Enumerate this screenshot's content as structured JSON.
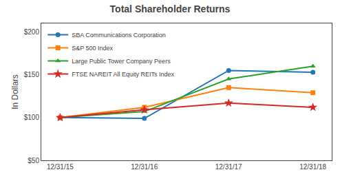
{
  "chart_data": {
    "type": "line",
    "title": "Total Shareholder Returns",
    "ylabel": "In Dollars",
    "categories": [
      "12/31/15",
      "12/31/16",
      "12/31/17",
      "12/31/18"
    ],
    "series": [
      {
        "name": "SBA Communications Corporation",
        "values": [
          100,
          99,
          155,
          153
        ],
        "marker": "circle"
      },
      {
        "name": "S&P 500 Index",
        "values": [
          100,
          112,
          135,
          129
        ],
        "marker": "square"
      },
      {
        "name": "Large Public Tower Company Peers",
        "values": [
          100,
          107,
          145,
          160
        ],
        "marker": "triangle-up"
      },
      {
        "name": "FTSE NAREIT All Equity REITs Index",
        "values": [
          100,
          109,
          117,
          112
        ],
        "marker": "star"
      }
    ],
    "ylim": [
      50,
      210
    ],
    "yticks": [
      {
        "value": 50,
        "label": "$50"
      },
      {
        "value": 100,
        "label": "$100"
      },
      {
        "value": 150,
        "label": "$150"
      },
      {
        "value": 200,
        "label": "$200"
      }
    ],
    "grid": false,
    "legend": "upper left"
  }
}
